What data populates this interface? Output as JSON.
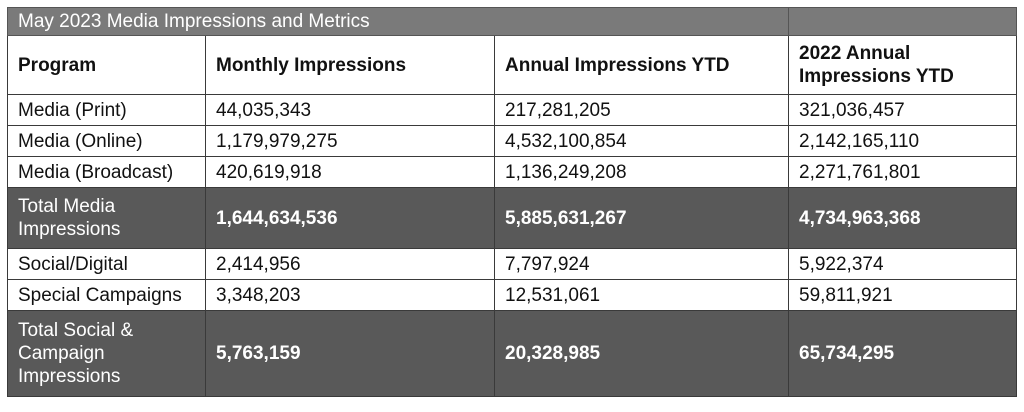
{
  "title": "May 2023 Media Impressions and Metrics",
  "headers": [
    "Program",
    "Monthly Impressions",
    "Annual Impressions YTD",
    "2022 Annual Impressions YTD"
  ],
  "rows": [
    {
      "program": "Media (Print)",
      "monthly": "44,035,343",
      "annual": "217,281,205",
      "prior": "321,036,457",
      "total": false
    },
    {
      "program": "Media (Online)",
      "monthly": "1,179,979,275",
      "annual": "4,532,100,854",
      "prior": "2,142,165,110",
      "total": false
    },
    {
      "program": "Media (Broadcast)",
      "monthly": "420,619,918",
      "annual": "1,136,249,208",
      "prior": "2,271,761,801",
      "total": false
    },
    {
      "program": "Total Media Impressions",
      "monthly": "1,644,634,536",
      "annual": "5,885,631,267",
      "prior": "4,734,963,368",
      "total": true
    },
    {
      "program": "Social/Digital",
      "monthly": "2,414,956",
      "annual": "7,797,924",
      "prior": "5,922,374",
      "total": false
    },
    {
      "program": "Special Campaigns",
      "monthly": "3,348,203",
      "annual": "12,531,061",
      "prior": "59,811,921",
      "total": false
    },
    {
      "program": "Total Social & Campaign Impressions",
      "monthly": "5,763,159",
      "annual": "20,328,985",
      "prior": "65,734,295",
      "total": true
    }
  ]
}
